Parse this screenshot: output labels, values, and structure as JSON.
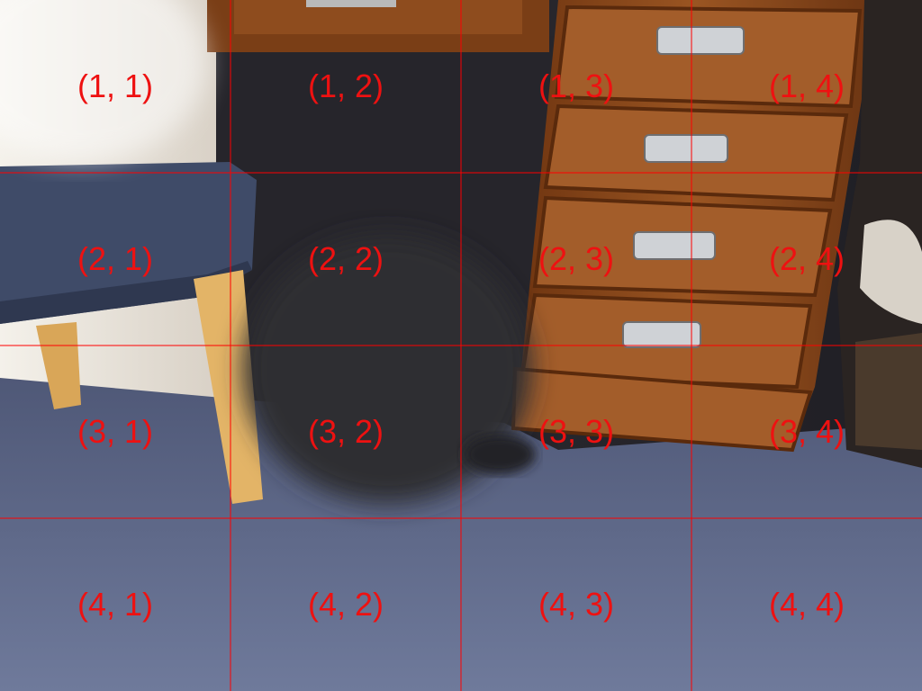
{
  "grid": {
    "rows": 4,
    "cols": 4,
    "line_color": "#ff0000",
    "label_color": "#ee1111",
    "labels": [
      [
        "(1, 1)",
        "(1, 2)",
        "(1, 3)",
        "(1, 4)"
      ],
      [
        "(2, 1)",
        "(2, 2)",
        "(2, 3)",
        "(2, 4)"
      ],
      [
        "(3, 1)",
        "(3, 2)",
        "(3, 3)",
        "(3, 4)"
      ],
      [
        "(4, 1)",
        "(4, 2)",
        "(4, 3)",
        "(4, 4)"
      ]
    ]
  },
  "scene": {
    "carpet_color": "#5f6a8c",
    "wood_color": "#8a4a1c",
    "chair_seat_color": "#3e4a66",
    "chair_leg_color": "#d8a85a",
    "drawer_handle_color": "#c9ccd0",
    "drawer_count": 4
  }
}
